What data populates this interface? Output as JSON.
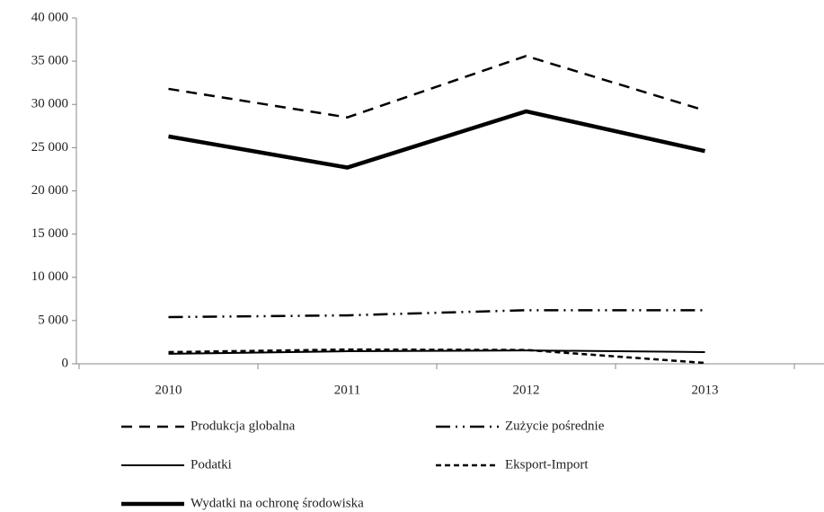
{
  "chart_data": {
    "type": "line",
    "categories": [
      "2010",
      "2011",
      "2012",
      "2013"
    ],
    "series": [
      {
        "name": "Produkcja globalna",
        "color": "#000000",
        "style": "dashed",
        "values": [
          31800,
          28500,
          35600,
          29300
        ]
      },
      {
        "name": "Zużycie pośrednie",
        "color": "#000000",
        "style": "dashdotdot",
        "values": [
          5400,
          5600,
          6200,
          6200
        ]
      },
      {
        "name": "Podatki",
        "color": "#000000",
        "style": "solid",
        "values": [
          1150,
          1450,
          1550,
          1350
        ]
      },
      {
        "name": "Eksport-Import",
        "color": "#000000",
        "style": "shortdash",
        "values": [
          1350,
          1650,
          1600,
          100
        ]
      },
      {
        "name": "Wydatki na ochronę środowiska",
        "color": "#000000",
        "style": "thick",
        "values": [
          26300,
          22700,
          29200,
          24600
        ]
      }
    ],
    "ylim": [
      0,
      40000
    ],
    "yticks": [
      0,
      {
        "value": 5000,
        "label": "5 000"
      },
      {
        "value": 10000,
        "label": "10 000"
      },
      {
        "value": 15000,
        "label": "15 000"
      },
      {
        "value": 20000,
        "label": "20 000"
      },
      {
        "value": 25000,
        "label": "25 000"
      },
      {
        "value": 30000,
        "label": "30 000"
      },
      {
        "value": 35000,
        "label": "35 000"
      },
      {
        "value": 40000,
        "label": "40 000"
      }
    ],
    "legend": "bottom"
  }
}
